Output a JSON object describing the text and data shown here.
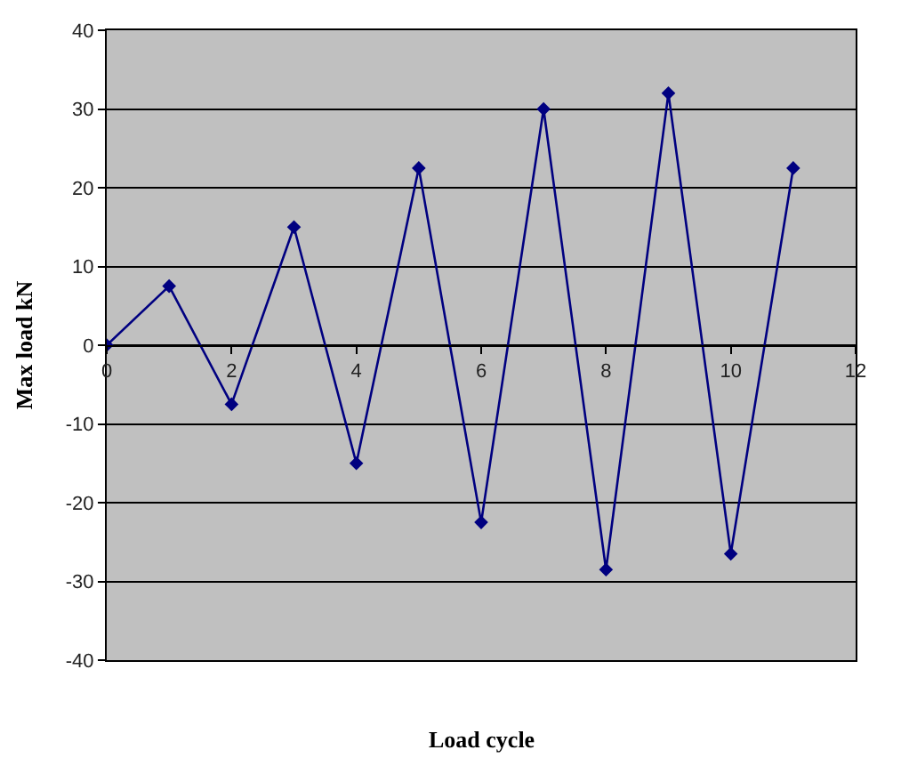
{
  "chart_data": {
    "type": "line",
    "xlabel": "Load cycle",
    "ylabel": "Max load kN",
    "x": [
      0,
      1,
      2,
      3,
      4,
      5,
      6,
      7,
      8,
      9,
      10,
      11
    ],
    "series": [
      {
        "color": "#000080",
        "values": [
          0,
          7.5,
          -7.5,
          15,
          -15,
          22.5,
          -22.5,
          30,
          -28.5,
          32,
          -26.5,
          22.5
        ]
      }
    ],
    "xlim": [
      0,
      12
    ],
    "xticks": [
      0,
      2,
      4,
      6,
      8,
      10,
      12
    ],
    "ylim": [
      -40,
      40
    ],
    "yticks": [
      -40,
      -30,
      -20,
      -10,
      0,
      10,
      20,
      30,
      40
    ],
    "grid": "y",
    "marker": "diamond",
    "line_style": "solid"
  }
}
